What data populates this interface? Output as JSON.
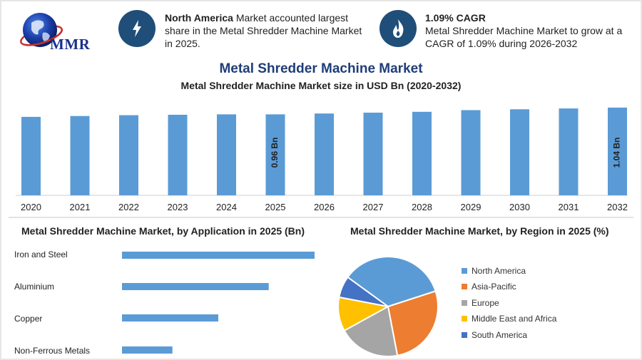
{
  "header": {
    "logo_text": "MMR",
    "info1": {
      "bold": "North America",
      "rest": " Market accounted largest share in the Metal Shredder Machine Market in 2025.",
      "icon": "lightning-icon"
    },
    "info2": {
      "bold": "1.09% CAGR",
      "rest": "Metal Shredder Machine Market to grow at a CAGR of 1.09% during 2026-2032",
      "icon": "flame-icon"
    }
  },
  "title": "Metal Shredder Machine Market",
  "subtitle": "Metal Shredder Machine Market size in USD Bn (2020-2032)",
  "application_title": "Metal Shredder Machine Market, by Application in 2025 (Bn)",
  "region_title": "Metal Shredder Machine Market, by Region in 2025 (%)",
  "colors": {
    "bar": "#5b9bd5",
    "accent": "#1f4e79"
  },
  "chart_data": [
    {
      "type": "bar",
      "title": "Metal Shredder Machine Market size in USD Bn (2020-2032)",
      "categories": [
        "2020",
        "2021",
        "2022",
        "2023",
        "2024",
        "2025",
        "2026",
        "2027",
        "2028",
        "2029",
        "2030",
        "2031",
        "2032"
      ],
      "values": [
        0.93,
        0.94,
        0.95,
        0.955,
        0.96,
        0.96,
        0.97,
        0.98,
        0.99,
        1.01,
        1.02,
        1.03,
        1.04
      ],
      "data_labels": [
        {
          "index": 5,
          "text": "0.96 Bn"
        },
        {
          "index": 12,
          "text": "1.04 Bn"
        }
      ],
      "ylim": [
        0,
        1.2
      ]
    },
    {
      "type": "bar",
      "orientation": "horizontal",
      "title": "Metal Shredder Machine Market, by Application in 2025 (Bn)",
      "categories": [
        "Iron and Steel",
        "Aluminium",
        "Copper",
        "Non-Ferrous Metals"
      ],
      "values": [
        0.42,
        0.32,
        0.21,
        0.11
      ],
      "xlim": [
        0,
        0.42
      ]
    },
    {
      "type": "pie",
      "title": "Metal Shredder Machine Market, by Region in 2025 (%)",
      "categories": [
        "North America",
        "Asia-Pacific",
        "Europe",
        "Middle East and Africa",
        "South America"
      ],
      "values": [
        35,
        27,
        20,
        11,
        7
      ],
      "colors": [
        "#5b9bd5",
        "#ed7d31",
        "#a5a5a5",
        "#ffc000",
        "#4472c4"
      ],
      "legend_position": "right"
    }
  ]
}
